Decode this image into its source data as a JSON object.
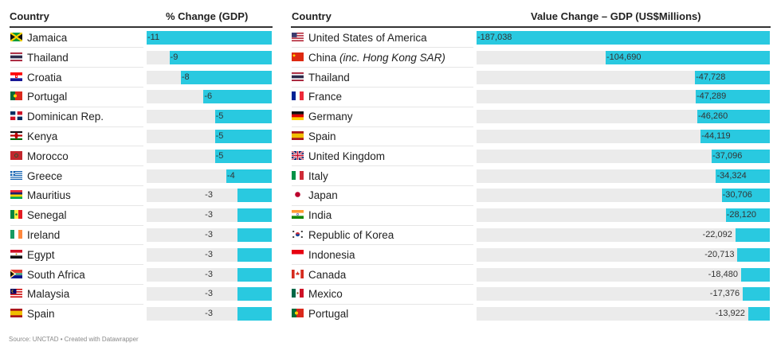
{
  "chart_data": [
    {
      "type": "bar",
      "orientation": "horizontal",
      "column_headers": {
        "category": "Country",
        "value": "% Change (GDP)"
      },
      "categories": [
        "Jamaica",
        "Thailand",
        "Croatia",
        "Portugal",
        "Dominican Rep.",
        "Kenya",
        "Morocco",
        "Greece",
        "Mauritius",
        "Senegal",
        "Ireland",
        "Egypt",
        "South Africa",
        "Malaysia",
        "Spain"
      ],
      "values": [
        -11,
        -9,
        -8,
        -6,
        -5,
        -5,
        -5,
        -4,
        -3,
        -3,
        -3,
        -3,
        -3,
        -3,
        -3
      ],
      "value_labels": [
        "-11",
        "-9",
        "-8",
        "-6",
        "-5",
        "-5",
        "-5",
        "-4",
        "-3",
        "-3",
        "-3",
        "-3",
        "-3",
        "-3",
        "-3"
      ],
      "flags": [
        "jm",
        "th",
        "hr",
        "pt",
        "do",
        "ke",
        "ma",
        "gr",
        "mu",
        "sn",
        "ie",
        "eg",
        "za",
        "my",
        "es"
      ],
      "xlim": [
        -11,
        0
      ]
    },
    {
      "type": "bar",
      "orientation": "horizontal",
      "column_headers": {
        "category": "Country",
        "value": "Value Change – GDP (US$Millions)"
      },
      "categories": [
        "United States of America",
        "China ",
        "Thailand",
        "France",
        "Germany",
        "Spain",
        "United Kingdom",
        "Italy",
        "Japan",
        "India",
        "Republic of Korea",
        "Indonesia",
        "Canada",
        "Mexico",
        "Portugal"
      ],
      "category_suffix": [
        "",
        "(inc. Hong Kong SAR)",
        "",
        "",
        "",
        "",
        "",
        "",
        "",
        "",
        "",
        "",
        "",
        "",
        ""
      ],
      "values": [
        -187038,
        -104690,
        -47728,
        -47289,
        -46260,
        -44119,
        -37096,
        -34324,
        -30706,
        -28120,
        -22092,
        -20713,
        -18480,
        -17376,
        -13922
      ],
      "value_labels": [
        "-187,038",
        "-104,690",
        "-47,728",
        "-47,289",
        "-46,260",
        "-44,119",
        "-37,096",
        "-34,324",
        "-30,706",
        "-28,120",
        "-22,092",
        "-20,713",
        "-18,480",
        "-17,376",
        "-13,922"
      ],
      "flags": [
        "us",
        "cn",
        "th",
        "fr",
        "de",
        "es",
        "gb",
        "it",
        "jp",
        "in",
        "kr",
        "id",
        "ca",
        "mx",
        "pt"
      ],
      "xlim": [
        -187038,
        0
      ]
    }
  ],
  "source": "Source: UNCTAD • Created with Datawrapper",
  "colors": {
    "bar": "#29c9e0",
    "track": "#ebebeb"
  }
}
